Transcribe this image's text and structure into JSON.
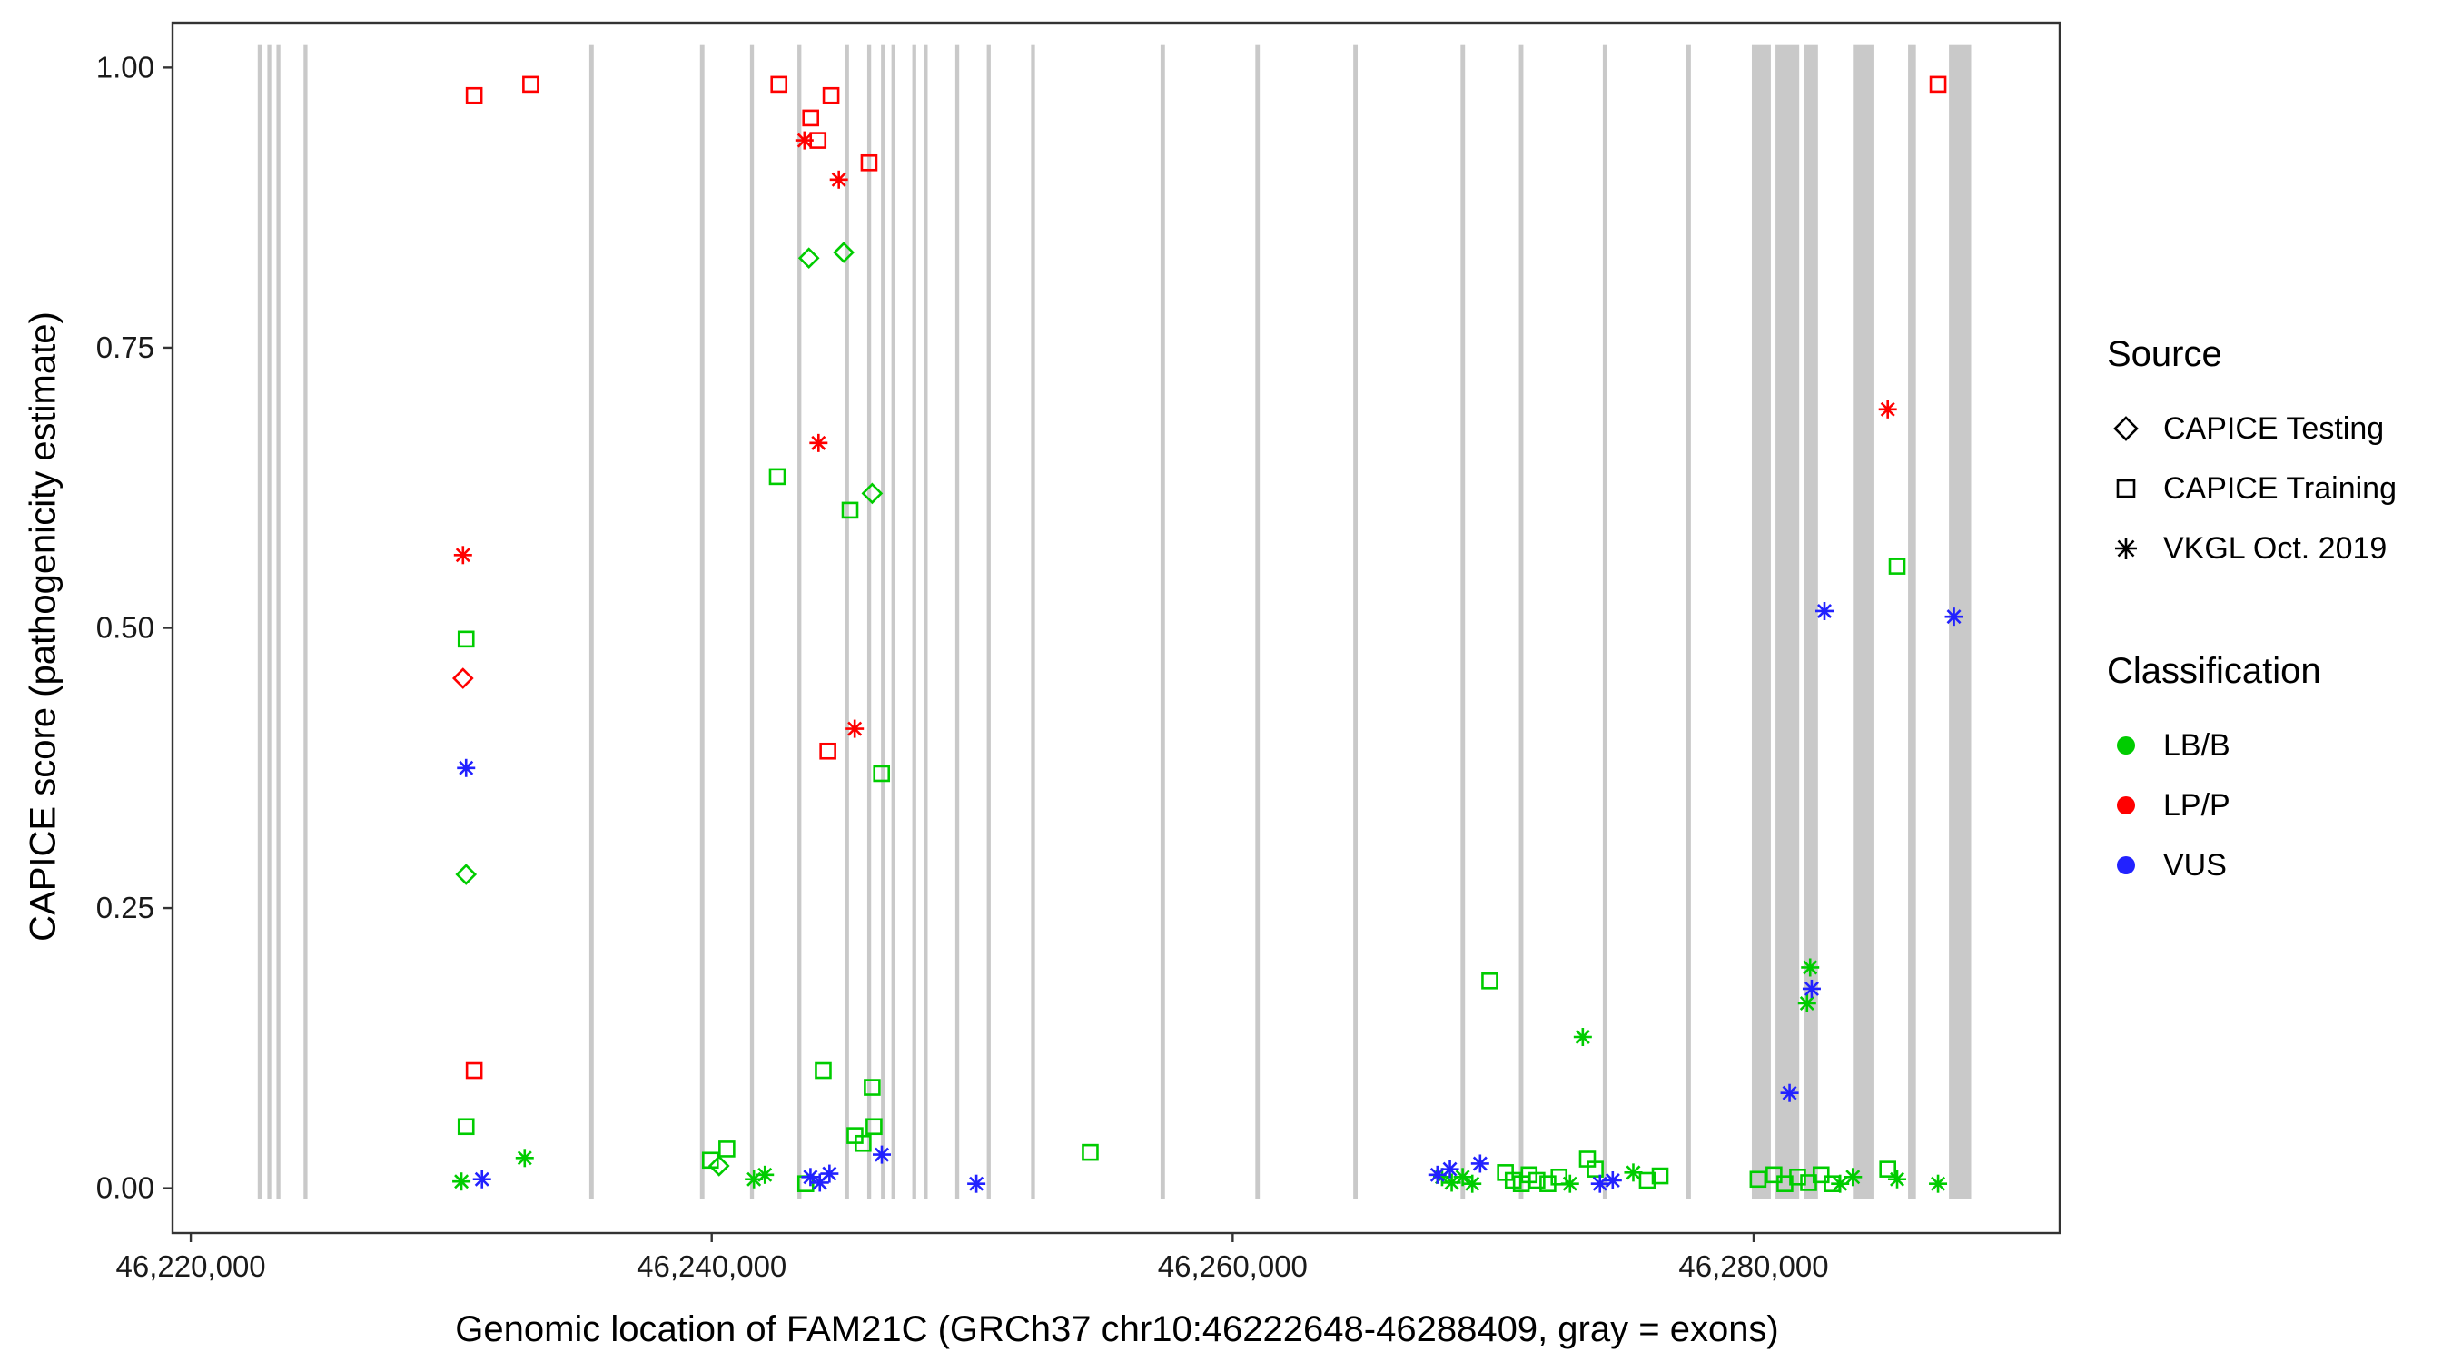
{
  "chart_data": {
    "type": "scatter",
    "title": "",
    "xlabel": "Genomic location of FAM21C (GRCh37 chr10:46222648-46288409, gray = exons)",
    "ylabel": "CAPICE score (pathogenicity estimate)",
    "xlim": [
      46219300,
      46291750
    ],
    "ylim": [
      -0.04,
      1.04
    ],
    "grid": false,
    "legend_position": "right",
    "x_ticks": [
      {
        "value": 46220000,
        "label": "46,220,000"
      },
      {
        "value": 46240000,
        "label": "46,240,000"
      },
      {
        "value": 46260000,
        "label": "46,260,000"
      },
      {
        "value": 46280000,
        "label": "46,280,000"
      }
    ],
    "y_ticks": [
      {
        "value": 0.0,
        "label": "0.00"
      },
      {
        "value": 0.25,
        "label": "0.25"
      },
      {
        "value": 0.5,
        "label": "0.50"
      },
      {
        "value": 0.75,
        "label": "0.75"
      },
      {
        "value": 1.0,
        "label": "1.00"
      }
    ],
    "colors": {
      "lbb": "#00CC00",
      "lpp": "#FF0000",
      "vus": "#2222FF",
      "exon": "#C9C9C9",
      "panel_border": "#333333",
      "tick_text": "#1a1a1a"
    },
    "shape_by_source": {
      "CAPICE Testing": "diamond",
      "CAPICE Training": "square",
      "VKGL Oct. 2019": "asterisk"
    },
    "color_by_classification": {
      "LB/B": "lbb",
      "LP/P": "lpp",
      "VUS": "vus"
    },
    "exons": [
      [
        46222570,
        46222720
      ],
      [
        46222940,
        46223090
      ],
      [
        46223290,
        46223440
      ],
      [
        46224330,
        46224480
      ],
      [
        46235300,
        46235470
      ],
      [
        46239550,
        46239720
      ],
      [
        46241470,
        46241620
      ],
      [
        46243290,
        46243440
      ],
      [
        46245120,
        46245270
      ],
      [
        46245970,
        46246120
      ],
      [
        46246500,
        46246650
      ],
      [
        46246900,
        46247050
      ],
      [
        46247700,
        46247850
      ],
      [
        46248140,
        46248290
      ],
      [
        46249350,
        46249500
      ],
      [
        46250560,
        46250710
      ],
      [
        46252260,
        46252410
      ],
      [
        46257230,
        46257400
      ],
      [
        46260870,
        46261040
      ],
      [
        46264630,
        46264800
      ],
      [
        46268750,
        46268920
      ],
      [
        46270990,
        46271160
      ],
      [
        46274210,
        46274380
      ],
      [
        46277420,
        46277590
      ],
      [
        46279930,
        46280660
      ],
      [
        46280840,
        46281750
      ],
      [
        46281930,
        46282470
      ],
      [
        46283810,
        46284600
      ],
      [
        46285930,
        46286230
      ],
      [
        46287500,
        46288350
      ]
    ],
    "points": [
      {
        "x": 46230880,
        "y": 0.975,
        "source": "CAPICE Training",
        "classification": "LP/P"
      },
      {
        "x": 46233050,
        "y": 0.985,
        "source": "CAPICE Training",
        "classification": "LP/P"
      },
      {
        "x": 46242580,
        "y": 0.985,
        "source": "CAPICE Training",
        "classification": "LP/P"
      },
      {
        "x": 46243800,
        "y": 0.955,
        "source": "CAPICE Training",
        "classification": "LP/P"
      },
      {
        "x": 46244580,
        "y": 0.975,
        "source": "CAPICE Training",
        "classification": "LP/P"
      },
      {
        "x": 46243560,
        "y": 0.935,
        "source": "VKGL Oct. 2019",
        "classification": "LP/P"
      },
      {
        "x": 46244080,
        "y": 0.935,
        "source": "CAPICE Training",
        "classification": "LP/P"
      },
      {
        "x": 46244880,
        "y": 0.9,
        "source": "VKGL Oct. 2019",
        "classification": "LP/P"
      },
      {
        "x": 46246040,
        "y": 0.915,
        "source": "CAPICE Training",
        "classification": "LP/P"
      },
      {
        "x": 46287080,
        "y": 0.985,
        "source": "CAPICE Training",
        "classification": "LP/P"
      },
      {
        "x": 46285150,
        "y": 0.695,
        "source": "VKGL Oct. 2019",
        "classification": "LP/P"
      },
      {
        "x": 46230450,
        "y": 0.565,
        "source": "VKGL Oct. 2019",
        "classification": "LP/P"
      },
      {
        "x": 46230450,
        "y": 0.455,
        "source": "CAPICE Testing",
        "classification": "LP/P"
      },
      {
        "x": 46244100,
        "y": 0.665,
        "source": "VKGL Oct. 2019",
        "classification": "LP/P"
      },
      {
        "x": 46245490,
        "y": 0.41,
        "source": "VKGL Oct. 2019",
        "classification": "LP/P"
      },
      {
        "x": 46244460,
        "y": 0.39,
        "source": "CAPICE Training",
        "classification": "LP/P"
      },
      {
        "x": 46230880,
        "y": 0.105,
        "source": "CAPICE Training",
        "classification": "LP/P"
      },
      {
        "x": 46243730,
        "y": 0.83,
        "source": "CAPICE Testing",
        "classification": "LB/B"
      },
      {
        "x": 46245070,
        "y": 0.835,
        "source": "CAPICE Testing",
        "classification": "LB/B"
      },
      {
        "x": 46246160,
        "y": 0.62,
        "source": "CAPICE Testing",
        "classification": "LB/B"
      },
      {
        "x": 46230570,
        "y": 0.28,
        "source": "CAPICE Testing",
        "classification": "LB/B"
      },
      {
        "x": 46240280,
        "y": 0.02,
        "source": "CAPICE Testing",
        "classification": "LB/B"
      },
      {
        "x": 46242520,
        "y": 0.635,
        "source": "CAPICE Training",
        "classification": "LB/B"
      },
      {
        "x": 46245310,
        "y": 0.605,
        "source": "CAPICE Training",
        "classification": "LB/B"
      },
      {
        "x": 46230570,
        "y": 0.49,
        "source": "CAPICE Training",
        "classification": "LB/B"
      },
      {
        "x": 46230570,
        "y": 0.055,
        "source": "CAPICE Training",
        "classification": "LB/B"
      },
      {
        "x": 46244280,
        "y": 0.105,
        "source": "CAPICE Training",
        "classification": "LB/B"
      },
      {
        "x": 46246160,
        "y": 0.09,
        "source": "CAPICE Training",
        "classification": "LB/B"
      },
      {
        "x": 46246230,
        "y": 0.055,
        "source": "CAPICE Training",
        "classification": "LB/B"
      },
      {
        "x": 46245500,
        "y": 0.047,
        "source": "CAPICE Training",
        "classification": "LB/B"
      },
      {
        "x": 46245810,
        "y": 0.04,
        "source": "CAPICE Training",
        "classification": "LB/B"
      },
      {
        "x": 46246520,
        "y": 0.37,
        "source": "CAPICE Training",
        "classification": "LB/B"
      },
      {
        "x": 46240580,
        "y": 0.035,
        "source": "CAPICE Training",
        "classification": "LB/B"
      },
      {
        "x": 46239950,
        "y": 0.025,
        "source": "CAPICE Training",
        "classification": "LB/B"
      },
      {
        "x": 46254530,
        "y": 0.032,
        "source": "CAPICE Training",
        "classification": "LB/B"
      },
      {
        "x": 46269870,
        "y": 0.185,
        "source": "CAPICE Training",
        "classification": "LB/B"
      },
      {
        "x": 46232820,
        "y": 0.027,
        "source": "VKGL Oct. 2019",
        "classification": "LB/B"
      },
      {
        "x": 46241620,
        "y": 0.008,
        "source": "VKGL Oct. 2019",
        "classification": "LB/B"
      },
      {
        "x": 46242040,
        "y": 0.012,
        "source": "VKGL Oct. 2019",
        "classification": "LB/B"
      },
      {
        "x": 46243610,
        "y": 0.004,
        "source": "CAPICE Training",
        "classification": "LB/B"
      },
      {
        "x": 46230390,
        "y": 0.006,
        "source": "VKGL Oct. 2019",
        "classification": "LB/B"
      },
      {
        "x": 46273440,
        "y": 0.135,
        "source": "VKGL Oct. 2019",
        "classification": "LB/B"
      },
      {
        "x": 46282170,
        "y": 0.197,
        "source": "VKGL Oct. 2019",
        "classification": "LB/B"
      },
      {
        "x": 46282050,
        "y": 0.165,
        "source": "VKGL Oct. 2019",
        "classification": "LB/B"
      },
      {
        "x": 46268040,
        "y": 0.01,
        "source": "VKGL Oct. 2019",
        "classification": "LB/B"
      },
      {
        "x": 46268410,
        "y": 0.005,
        "source": "VKGL Oct. 2019",
        "classification": "LB/B"
      },
      {
        "x": 46268830,
        "y": 0.01,
        "source": "VKGL Oct. 2019",
        "classification": "LB/B"
      },
      {
        "x": 46269200,
        "y": 0.004,
        "source": "VKGL Oct. 2019",
        "classification": "LB/B"
      },
      {
        "x": 46270470,
        "y": 0.014,
        "source": "CAPICE Training",
        "classification": "LB/B"
      },
      {
        "x": 46270770,
        "y": 0.007,
        "source": "CAPICE Training",
        "classification": "LB/B"
      },
      {
        "x": 46271080,
        "y": 0.004,
        "source": "CAPICE Training",
        "classification": "LB/B"
      },
      {
        "x": 46271380,
        "y": 0.012,
        "source": "CAPICE Training",
        "classification": "LB/B"
      },
      {
        "x": 46271680,
        "y": 0.007,
        "source": "CAPICE Training",
        "classification": "LB/B"
      },
      {
        "x": 46272100,
        "y": 0.004,
        "source": "CAPICE Training",
        "classification": "LB/B"
      },
      {
        "x": 46272530,
        "y": 0.01,
        "source": "CAPICE Training",
        "classification": "LB/B"
      },
      {
        "x": 46272950,
        "y": 0.004,
        "source": "VKGL Oct. 2019",
        "classification": "LB/B"
      },
      {
        "x": 46273620,
        "y": 0.026,
        "source": "CAPICE Training",
        "classification": "LB/B"
      },
      {
        "x": 46273920,
        "y": 0.017,
        "source": "CAPICE Training",
        "classification": "LB/B"
      },
      {
        "x": 46275380,
        "y": 0.014,
        "source": "VKGL Oct. 2019",
        "classification": "LB/B"
      },
      {
        "x": 46275920,
        "y": 0.007,
        "source": "CAPICE Training",
        "classification": "LB/B"
      },
      {
        "x": 46276410,
        "y": 0.011,
        "source": "CAPICE Training",
        "classification": "LB/B"
      },
      {
        "x": 46280170,
        "y": 0.008,
        "source": "CAPICE Training",
        "classification": "LB/B"
      },
      {
        "x": 46280780,
        "y": 0.012,
        "source": "CAPICE Training",
        "classification": "LB/B"
      },
      {
        "x": 46281200,
        "y": 0.004,
        "source": "CAPICE Training",
        "classification": "LB/B"
      },
      {
        "x": 46281690,
        "y": 0.01,
        "source": "CAPICE Training",
        "classification": "LB/B"
      },
      {
        "x": 46282110,
        "y": 0.005,
        "source": "CAPICE Training",
        "classification": "LB/B"
      },
      {
        "x": 46282590,
        "y": 0.012,
        "source": "CAPICE Training",
        "classification": "LB/B"
      },
      {
        "x": 46283020,
        "y": 0.004,
        "source": "CAPICE Training",
        "classification": "LB/B"
      },
      {
        "x": 46283320,
        "y": 0.004,
        "source": "VKGL Oct. 2019",
        "classification": "LB/B"
      },
      {
        "x": 46283810,
        "y": 0.01,
        "source": "VKGL Oct. 2019",
        "classification": "LB/B"
      },
      {
        "x": 46285150,
        "y": 0.017,
        "source": "CAPICE Training",
        "classification": "LB/B"
      },
      {
        "x": 46285510,
        "y": 0.555,
        "source": "CAPICE Training",
        "classification": "LB/B"
      },
      {
        "x": 46285510,
        "y": 0.008,
        "source": "VKGL Oct. 2019",
        "classification": "LB/B"
      },
      {
        "x": 46287080,
        "y": 0.004,
        "source": "VKGL Oct. 2019",
        "classification": "LB/B"
      },
      {
        "x": 46230570,
        "y": 0.375,
        "source": "VKGL Oct. 2019",
        "classification": "VUS"
      },
      {
        "x": 46231180,
        "y": 0.008,
        "source": "VKGL Oct. 2019",
        "classification": "VUS"
      },
      {
        "x": 46243790,
        "y": 0.01,
        "source": "VKGL Oct. 2019",
        "classification": "VUS"
      },
      {
        "x": 46244150,
        "y": 0.005,
        "source": "VKGL Oct. 2019",
        "classification": "VUS"
      },
      {
        "x": 46244520,
        "y": 0.013,
        "source": "VKGL Oct. 2019",
        "classification": "VUS"
      },
      {
        "x": 46246530,
        "y": 0.03,
        "source": "VKGL Oct. 2019",
        "classification": "VUS"
      },
      {
        "x": 46250160,
        "y": 0.004,
        "source": "VKGL Oct. 2019",
        "classification": "VUS"
      },
      {
        "x": 46267860,
        "y": 0.012,
        "source": "VKGL Oct. 2019",
        "classification": "VUS"
      },
      {
        "x": 46268340,
        "y": 0.017,
        "source": "VKGL Oct. 2019",
        "classification": "VUS"
      },
      {
        "x": 46269500,
        "y": 0.022,
        "source": "VKGL Oct. 2019",
        "classification": "VUS"
      },
      {
        "x": 46274100,
        "y": 0.004,
        "source": "VKGL Oct. 2019",
        "classification": "VUS"
      },
      {
        "x": 46274590,
        "y": 0.007,
        "source": "VKGL Oct. 2019",
        "classification": "VUS"
      },
      {
        "x": 46281380,
        "y": 0.085,
        "source": "VKGL Oct. 2019",
        "classification": "VUS"
      },
      {
        "x": 46282230,
        "y": 0.178,
        "source": "VKGL Oct. 2019",
        "classification": "VUS"
      },
      {
        "x": 46282720,
        "y": 0.515,
        "source": "VKGL Oct. 2019",
        "classification": "VUS"
      },
      {
        "x": 46287690,
        "y": 0.51,
        "source": "VKGL Oct. 2019",
        "classification": "VUS"
      }
    ]
  },
  "legend": {
    "source_title": "Source",
    "source_items": [
      {
        "label": "CAPICE Testing",
        "shape": "diamond"
      },
      {
        "label": "CAPICE Training",
        "shape": "square"
      },
      {
        "label": "VKGL Oct. 2019",
        "shape": "asterisk"
      }
    ],
    "classification_title": "Classification",
    "classification_items": [
      {
        "label": "LB/B",
        "color": "#00CC00"
      },
      {
        "label": "LP/P",
        "color": "#FF0000"
      },
      {
        "label": "VUS",
        "color": "#2222FF"
      }
    ]
  }
}
